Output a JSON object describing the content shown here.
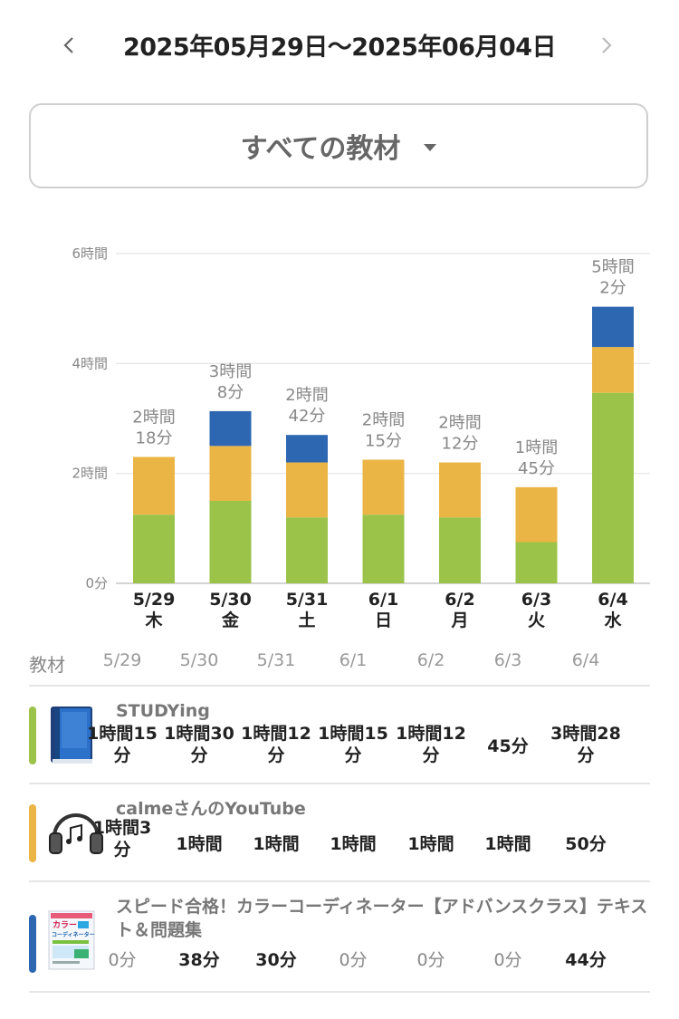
{
  "header": {
    "title": "2025年05月29日〜2025年06月04日"
  },
  "filter": {
    "label": "すべての教材"
  },
  "chart_data": {
    "type": "bar",
    "stacked": true,
    "categories": [
      "5/29",
      "5/30",
      "5/31",
      "6/1",
      "6/2",
      "6/3",
      "6/4"
    ],
    "weekdays": [
      "木",
      "金",
      "土",
      "日",
      "月",
      "火",
      "水"
    ],
    "y_unit": "minutes",
    "ylim": [
      0,
      360
    ],
    "yticks": [
      {
        "value": 0,
        "label": "0分"
      },
      {
        "value": 120,
        "label": "2時間"
      },
      {
        "value": 240,
        "label": "4時間"
      },
      {
        "value": 360,
        "label": "6時間"
      }
    ],
    "grid": true,
    "series": [
      {
        "name": "STUDYing",
        "color": "#9bc34a",
        "values": [
          75,
          90,
          72,
          75,
          72,
          45,
          208
        ]
      },
      {
        "name": "calmeさんのYouTube",
        "color": "#ebb545",
        "values": [
          63,
          60,
          60,
          60,
          60,
          60,
          50
        ]
      },
      {
        "name": "スピード合格！カラーコーディネーター【アドバンスクラス】テキスト＆問題集",
        "color": "#2e67b1",
        "values": [
          0,
          38,
          30,
          0,
          0,
          0,
          44
        ]
      }
    ],
    "totals": [
      [
        "2時間",
        "18分"
      ],
      [
        "3時間",
        "8分"
      ],
      [
        "2時間",
        "42分"
      ],
      [
        "2時間",
        "15分"
      ],
      [
        "2時間",
        "12分"
      ],
      [
        "1時間",
        "45分"
      ],
      [
        "5時間",
        "2分"
      ]
    ]
  },
  "table": {
    "header_label": "教材",
    "days": [
      "5/29",
      "5/30",
      "5/31",
      "6/1",
      "6/2",
      "6/3",
      "6/4"
    ],
    "rows": [
      {
        "name": "STUDYing",
        "color": "#9bc34a",
        "icon": "book-icon",
        "values": [
          [
            "1時間15",
            "分"
          ],
          [
            "1時間30",
            "分"
          ],
          [
            "1時間12",
            "分"
          ],
          [
            "1時間15",
            "分"
          ],
          [
            "1時間12",
            "分"
          ],
          [
            "45分"
          ],
          [
            "3時間28",
            "分"
          ]
        ]
      },
      {
        "name": "calmeさんのYouTube",
        "color": "#ebb545",
        "icon": "headphones-icon",
        "values": [
          [
            "1時間3",
            "分"
          ],
          [
            "1時間"
          ],
          [
            "1時間"
          ],
          [
            "1時間"
          ],
          [
            "1時間"
          ],
          [
            "1時間"
          ],
          [
            "50分"
          ]
        ]
      },
      {
        "name": "スピード合格！カラーコーディネーター【アドバンスクラス】テキスト＆問題集",
        "color": "#2e67b1",
        "icon": "textbook-cover-icon",
        "cover_text": [
          "カラー",
          "コーディネーター"
        ],
        "values": [
          [
            "0分"
          ],
          [
            "38分"
          ],
          [
            "30分"
          ],
          [
            "0分"
          ],
          [
            "0分"
          ],
          [
            "0分"
          ],
          [
            "44分"
          ]
        ]
      }
    ]
  }
}
